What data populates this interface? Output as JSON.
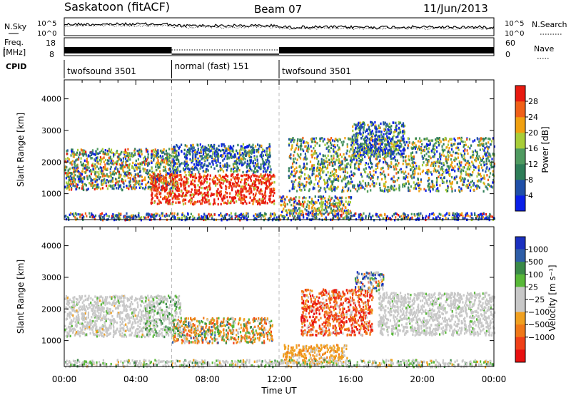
{
  "header": {
    "station": "Saskatoon (fitACF)",
    "beam": "Beam 07",
    "date": "11/Jun/2013"
  },
  "noise_panel": {
    "left_label": "N.Sky",
    "right_label": "N.Search",
    "ticks_left": [
      "10^5",
      "10^0"
    ],
    "ticks_right": [
      "10^5",
      "10^0"
    ]
  },
  "freq_panel": {
    "left_label_1": "Freq.",
    "left_label_2": "[MHz]",
    "right_label": "Nave",
    "ticks_left": [
      "18",
      "8"
    ],
    "ticks_right": [
      "60",
      "0"
    ]
  },
  "cpid": {
    "label": "CPID",
    "segments": [
      {
        "name": "twofsound 3501",
        "start_h": 0,
        "end_h": 6
      },
      {
        "name": "normal (fast) 151",
        "start_h": 6,
        "end_h": 12
      },
      {
        "name": "twofsound 3501",
        "start_h": 12,
        "end_h": 24
      }
    ]
  },
  "colors": {
    "power": [
      "#0a1fe8",
      "#1f4fa8",
      "#2e7d58",
      "#4f9a60",
      "#a8cd38",
      "#f0a010",
      "#f06018",
      "#e81a10"
    ],
    "velocity": [
      "#e81010",
      "#f04018",
      "#f07818",
      "#f0a020",
      "#c8c8c8",
      "#c8c8c8",
      "#58b838",
      "#3a8a48",
      "#2e5ea8",
      "#1a30c0"
    ]
  },
  "chart_data": {
    "type": "heatmap",
    "x_axis": {
      "label": "Time UT",
      "range_hours": [
        0,
        24
      ],
      "tick_labels": [
        "00:00",
        "04:00",
        "08:00",
        "12:00",
        "16:00",
        "20:00",
        "00:00"
      ]
    },
    "panels": [
      {
        "name": "power",
        "ylabel": "Slant Range [km]",
        "ylim": [
          180,
          4600
        ],
        "yticks": [
          "1000",
          "2000",
          "3000",
          "4000"
        ],
        "colorbar": {
          "label": "Power [dB]",
          "tick_labels": [
            "4",
            "8",
            "12",
            "16",
            "20",
            "24",
            "28"
          ]
        },
        "regions": [
          {
            "t0": 0.0,
            "t1": 6.2,
            "r0": 1150,
            "r1": 2450,
            "weights": [
              2,
              2,
              3,
              3,
              3,
              3,
              1,
              1
            ]
          },
          {
            "t0": 4.8,
            "t1": 11.7,
            "r0": 700,
            "r1": 1650,
            "weights": [
              0,
              0,
              0,
              0,
              1,
              1,
              3,
              10
            ]
          },
          {
            "t0": 6.0,
            "t1": 11.5,
            "r0": 1700,
            "r1": 2600,
            "weights": [
              4,
              3,
              3,
              2,
              1,
              1,
              0,
              0
            ]
          },
          {
            "t0": 12.5,
            "t1": 24.0,
            "r0": 1100,
            "r1": 2800,
            "weights": [
              2,
              2,
              3,
              3,
              3,
              3,
              1,
              0
            ]
          },
          {
            "t0": 12.0,
            "t1": 16.0,
            "r0": 400,
            "r1": 950,
            "weights": [
              1,
              1,
              2,
              2,
              3,
              3,
              2,
              1
            ]
          },
          {
            "t0": 16.0,
            "t1": 19.0,
            "r0": 2200,
            "r1": 3300,
            "weights": [
              4,
              3,
              2,
              2,
              2,
              1,
              0,
              0
            ]
          },
          {
            "t0": 0.0,
            "t1": 24.0,
            "r0": 200,
            "r1": 420,
            "weights": [
              3,
              3,
              2,
              1,
              1,
              1,
              1,
              1
            ]
          }
        ]
      },
      {
        "name": "velocity",
        "ylabel": "Slant Range [km]",
        "ylim": [
          180,
          4600
        ],
        "yticks": [
          "1000",
          "2000",
          "3000",
          "4000"
        ],
        "colorbar": {
          "label": "Velocity [m s⁻¹]",
          "tick_labels": [
            "1000",
            "500",
            "100",
            "25",
            "−25",
            "−100",
            "−500",
            "−1000"
          ]
        },
        "regions": [
          {
            "t0": 0.0,
            "t1": 4.8,
            "r0": 1150,
            "r1": 2450,
            "weights": [
              0,
              0,
              0,
              1,
              10,
              10,
              1,
              0,
              0,
              0
            ]
          },
          {
            "t0": 6.0,
            "t1": 11.6,
            "r0": 950,
            "r1": 1750,
            "weights": [
              0,
              1,
              5,
              3,
              1,
              1,
              2,
              2,
              1,
              0
            ]
          },
          {
            "t0": 4.5,
            "t1": 6.5,
            "r0": 1150,
            "r1": 2450,
            "weights": [
              0,
              0,
              0,
              0,
              4,
              4,
              2,
              2,
              0,
              0
            ]
          },
          {
            "t0": 13.2,
            "t1": 17.2,
            "r0": 1200,
            "r1": 2650,
            "weights": [
              3,
              4,
              3,
              1,
              1,
              1,
              0,
              0,
              0,
              0
            ]
          },
          {
            "t0": 16.2,
            "t1": 17.8,
            "r0": 2600,
            "r1": 3200,
            "weights": [
              0,
              1,
              1,
              1,
              2,
              2,
              1,
              1,
              2,
              2
            ]
          },
          {
            "t0": 17.5,
            "t1": 24.0,
            "r0": 1200,
            "r1": 2550,
            "weights": [
              0,
              0,
              0,
              0,
              10,
              10,
              1,
              0,
              0,
              0
            ]
          },
          {
            "t0": 12.2,
            "t1": 15.8,
            "r0": 300,
            "r1": 900,
            "weights": [
              0,
              0,
              1,
              5,
              1,
              1,
              0,
              0,
              0,
              0
            ]
          },
          {
            "t0": 0.0,
            "t1": 24.0,
            "r0": 200,
            "r1": 420,
            "weights": [
              0,
              0,
              0,
              1,
              4,
              4,
              2,
              1,
              0,
              0
            ]
          }
        ]
      }
    ]
  }
}
